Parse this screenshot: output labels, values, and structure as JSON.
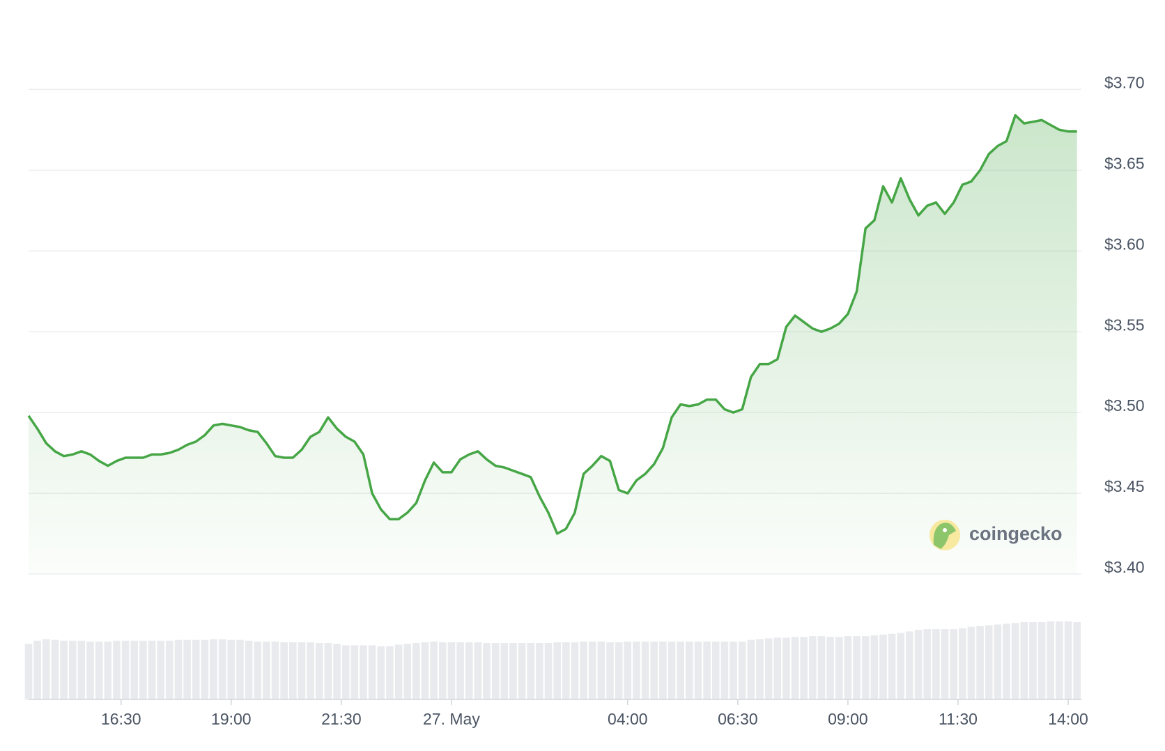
{
  "chart_data": {
    "type": "line",
    "x": [
      14.4,
      14.6,
      14.8,
      15.0,
      15.2,
      15.4,
      15.6,
      15.8,
      16.0,
      16.2,
      16.4,
      16.6,
      16.8,
      17.0,
      17.2,
      17.4,
      17.6,
      17.8,
      18.0,
      18.2,
      18.4,
      18.6,
      18.8,
      19.0,
      19.2,
      19.4,
      19.6,
      19.8,
      20.0,
      20.2,
      20.4,
      20.6,
      20.8,
      21.0,
      21.2,
      21.4,
      21.6,
      21.8,
      22.0,
      22.2,
      22.4,
      22.6,
      22.8,
      23.0,
      23.2,
      23.4,
      23.6,
      23.8,
      24.0,
      24.2,
      24.4,
      24.6,
      24.8,
      25.0,
      25.2,
      25.4,
      25.6,
      25.8,
      26.0,
      26.2,
      26.4,
      26.6,
      26.8,
      27.0,
      27.2,
      27.4,
      27.6,
      27.8,
      28.0,
      28.2,
      28.4,
      28.6,
      28.8,
      29.0,
      29.2,
      29.4,
      29.6,
      29.8,
      30.0,
      30.2,
      30.4,
      30.6,
      30.8,
      31.0,
      31.2,
      31.4,
      31.6,
      31.8,
      32.0,
      32.2,
      32.4,
      32.6,
      32.8,
      33.0,
      33.2,
      33.4,
      33.6,
      33.8,
      34.0,
      34.2,
      34.4,
      34.6,
      34.8,
      35.0,
      35.2,
      35.4,
      35.6,
      35.8,
      36.0,
      36.2,
      36.4,
      36.6,
      36.8,
      37.0,
      37.2,
      37.4,
      37.6,
      37.8,
      38.0,
      38.2
    ],
    "series": [
      {
        "color": "#46a646",
        "values": [
          3.498,
          3.49,
          3.481,
          3.476,
          3.473,
          3.474,
          3.476,
          3.474,
          3.47,
          3.467,
          3.47,
          3.472,
          3.472,
          3.472,
          3.474,
          3.474,
          3.475,
          3.477,
          3.48,
          3.482,
          3.486,
          3.492,
          3.493,
          3.492,
          3.491,
          3.489,
          3.488,
          3.481,
          3.473,
          3.472,
          3.472,
          3.477,
          3.485,
          3.488,
          3.497,
          3.49,
          3.485,
          3.482,
          3.474,
          3.45,
          3.44,
          3.434,
          3.434,
          3.438,
          3.444,
          3.458,
          3.469,
          3.463,
          3.463,
          3.471,
          3.474,
          3.476,
          3.471,
          3.467,
          3.466,
          3.464,
          3.462,
          3.46,
          3.448,
          3.438,
          3.425,
          3.428,
          3.438,
          3.462,
          3.467,
          3.473,
          3.47,
          3.452,
          3.45,
          3.458,
          3.462,
          3.468,
          3.478,
          3.497,
          3.505,
          3.504,
          3.505,
          3.508,
          3.508,
          3.502,
          3.5,
          3.502,
          3.522,
          3.53,
          3.53,
          3.533,
          3.553,
          3.56,
          3.556,
          3.552,
          3.55,
          3.552,
          3.555,
          3.561,
          3.575,
          3.614,
          3.619,
          3.64,
          3.63,
          3.645,
          3.632,
          3.622,
          3.628,
          3.63,
          3.623,
          3.63,
          3.641,
          3.643,
          3.65,
          3.66,
          3.665,
          3.668,
          3.684,
          3.679,
          3.68,
          3.681,
          3.678,
          3.675,
          3.674,
          3.674
        ]
      }
    ],
    "volume": {
      "color": "#e9eaed",
      "values": [
        72,
        76,
        78,
        77,
        76,
        76,
        76,
        75,
        75,
        75,
        76,
        76,
        76,
        76,
        76,
        76,
        76,
        77,
        77,
        77,
        77,
        78,
        78,
        77,
        77,
        76,
        75,
        75,
        75,
        74,
        74,
        74,
        74,
        73,
        73,
        72,
        70,
        70,
        70,
        70,
        69,
        69,
        71,
        72,
        73,
        74,
        75,
        74,
        74,
        74,
        74,
        74,
        73,
        73,
        73,
        73,
        73,
        73,
        73,
        73,
        74,
        74,
        74,
        75,
        75,
        75,
        74,
        74,
        75,
        75,
        75,
        75,
        75,
        75,
        75,
        75,
        75,
        75,
        75,
        75,
        75,
        75,
        77,
        78,
        79,
        80,
        80,
        81,
        81,
        82,
        82,
        81,
        81,
        82,
        82,
        82,
        83,
        84,
        85,
        86,
        88,
        90,
        91,
        91,
        91,
        91,
        92,
        94,
        95,
        96,
        97,
        98,
        99,
        100,
        100,
        100,
        101,
        101,
        101,
        100
      ]
    },
    "ylim": [
      3.4,
      3.72
    ],
    "yticks": [
      {
        "value": 3.4,
        "label": "$3.40"
      },
      {
        "value": 3.45,
        "label": "$3.45"
      },
      {
        "value": 3.5,
        "label": "$3.50"
      },
      {
        "value": 3.55,
        "label": "$3.55"
      },
      {
        "value": 3.6,
        "label": "$3.60"
      },
      {
        "value": 3.65,
        "label": "$3.65"
      },
      {
        "value": 3.7,
        "label": "$3.70"
      }
    ],
    "xlim": [
      14.4,
      38.3
    ],
    "xticks": [
      {
        "value": 16.5,
        "label": "16:30"
      },
      {
        "value": 19.0,
        "label": "19:00"
      },
      {
        "value": 21.5,
        "label": "21:30"
      },
      {
        "value": 24.0,
        "label": "27. May"
      },
      {
        "value": 28.0,
        "label": "04:00"
      },
      {
        "value": 30.5,
        "label": "06:30"
      },
      {
        "value": 33.0,
        "label": "09:00"
      },
      {
        "value": 35.5,
        "label": "11:30"
      },
      {
        "value": 38.0,
        "label": "14:00"
      }
    ],
    "grid": true,
    "watermark": "coingecko"
  }
}
